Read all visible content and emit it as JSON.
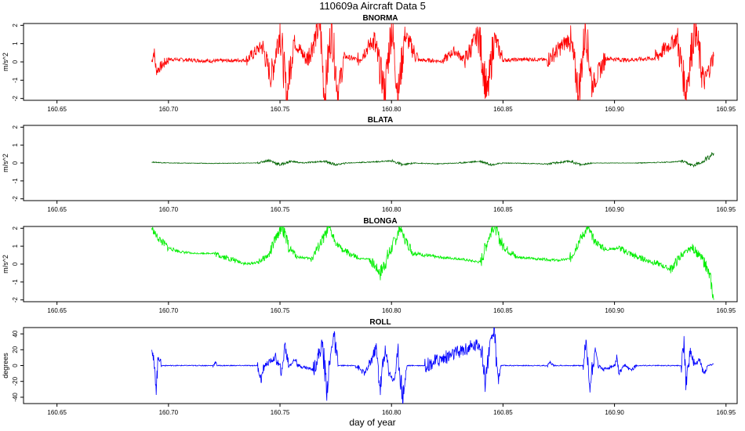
{
  "title": "110609a   Aircraft Data 5",
  "x_axis_label": "day of year",
  "colors": {
    "BNORMA": "#ff0000",
    "BLATA": "#006400",
    "BLONGA": "#00ee00",
    "ROLL": "#0000ff"
  },
  "chart_data": [
    {
      "type": "line",
      "title": "BNORMA",
      "ylabel": "m/s^2",
      "xlim": [
        160.635,
        160.955
      ],
      "ylim": [
        -2.1,
        2.1
      ],
      "yticks": [
        -2,
        -1,
        0,
        1,
        2
      ],
      "xticks": [
        160.65,
        160.7,
        160.75,
        160.8,
        160.85,
        160.9,
        160.95
      ],
      "x_range": [
        160.6925,
        160.9445
      ],
      "series": [
        {
          "values": [
            [
              160.6925,
              0.0
            ],
            [
              160.6935,
              0.6
            ],
            [
              160.6945,
              -0.5
            ],
            [
              160.7,
              0.15
            ],
            [
              160.71,
              0.1
            ],
            [
              160.72,
              0.05
            ],
            [
              160.735,
              0.1
            ],
            [
              160.742,
              0.9
            ],
            [
              160.746,
              -0.9
            ],
            [
              160.75,
              1.8
            ],
            [
              160.753,
              -2.0
            ],
            [
              160.756,
              1.2
            ],
            [
              160.762,
              0.1
            ],
            [
              160.768,
              2.0
            ],
            [
              160.77,
              -2.0
            ],
            [
              160.773,
              1.9
            ],
            [
              160.776,
              -1.6
            ],
            [
              160.779,
              0.3
            ],
            [
              160.785,
              0.1
            ],
            [
              160.792,
              1.2
            ],
            [
              160.797,
              -1.6
            ],
            [
              160.8,
              2.0
            ],
            [
              160.803,
              -1.8
            ],
            [
              160.806,
              1.5
            ],
            [
              160.812,
              0.1
            ],
            [
              160.823,
              0.05
            ],
            [
              160.828,
              0.6
            ],
            [
              160.833,
              0.1
            ],
            [
              160.839,
              1.6
            ],
            [
              160.843,
              -1.9
            ],
            [
              160.846,
              1.4
            ],
            [
              160.85,
              0.1
            ],
            [
              160.863,
              0.15
            ],
            [
              160.87,
              0.1
            ],
            [
              160.88,
              1.3
            ],
            [
              160.884,
              -1.7
            ],
            [
              160.887,
              1.9
            ],
            [
              160.89,
              -1.3
            ],
            [
              160.896,
              0.2
            ],
            [
              160.905,
              0.1
            ],
            [
              160.918,
              0.2
            ],
            [
              160.928,
              1.3
            ],
            [
              160.932,
              -1.6
            ],
            [
              160.936,
              2.0
            ],
            [
              160.94,
              -1.2
            ],
            [
              160.9445,
              0.3
            ]
          ]
        }
      ]
    },
    {
      "type": "line",
      "title": "BLATA",
      "ylabel": "m/s^2",
      "xlim": [
        160.635,
        160.955
      ],
      "ylim": [
        -2.1,
        2.1
      ],
      "yticks": [
        -2,
        -1,
        0,
        1,
        2
      ],
      "xticks": [
        160.65,
        160.7,
        160.75,
        160.8,
        160.85,
        160.9,
        160.95
      ],
      "x_range": [
        160.6925,
        160.9445
      ],
      "series": [
        {
          "values": [
            [
              160.6925,
              0.05
            ],
            [
              160.7,
              0.0
            ],
            [
              160.72,
              -0.02
            ],
            [
              160.74,
              0.0
            ],
            [
              160.745,
              0.15
            ],
            [
              160.75,
              -0.1
            ],
            [
              160.755,
              0.1
            ],
            [
              160.76,
              0.0
            ],
            [
              160.77,
              0.1
            ],
            [
              160.775,
              -0.1
            ],
            [
              160.78,
              0.0
            ],
            [
              160.79,
              0.05
            ],
            [
              160.8,
              0.12
            ],
            [
              160.805,
              -0.1
            ],
            [
              160.81,
              0.0
            ],
            [
              160.82,
              -0.05
            ],
            [
              160.83,
              0.0
            ],
            [
              160.84,
              0.1
            ],
            [
              160.845,
              -0.1
            ],
            [
              160.85,
              0.0
            ],
            [
              160.87,
              -0.05
            ],
            [
              160.88,
              0.1
            ],
            [
              160.885,
              -0.1
            ],
            [
              160.89,
              0.0
            ],
            [
              160.91,
              0.0
            ],
            [
              160.925,
              0.05
            ],
            [
              160.93,
              0.1
            ],
            [
              160.935,
              -0.15
            ],
            [
              160.94,
              0.1
            ],
            [
              160.9445,
              0.55
            ]
          ]
        }
      ]
    },
    {
      "type": "line",
      "title": "BLONGA",
      "ylabel": "m/s^2",
      "xlim": [
        160.635,
        160.955
      ],
      "ylim": [
        -2.1,
        2.1
      ],
      "yticks": [
        -2,
        -1,
        0,
        1,
        2
      ],
      "xticks": [
        160.65,
        160.7,
        160.75,
        160.8,
        160.85,
        160.9,
        160.95
      ],
      "x_range": [
        160.6925,
        160.9445
      ],
      "series": [
        {
          "values": [
            [
              160.6925,
              2.0
            ],
            [
              160.695,
              1.5
            ],
            [
              160.7,
              0.9
            ],
            [
              160.705,
              0.7
            ],
            [
              160.71,
              0.6
            ],
            [
              160.72,
              0.6
            ],
            [
              160.73,
              0.2
            ],
            [
              160.735,
              0.0
            ],
            [
              160.74,
              0.1
            ],
            [
              160.745,
              0.5
            ],
            [
              160.748,
              1.4
            ],
            [
              160.751,
              2.1
            ],
            [
              160.754,
              0.9
            ],
            [
              160.758,
              0.4
            ],
            [
              160.764,
              0.3
            ],
            [
              160.768,
              1.1
            ],
            [
              160.772,
              2.0
            ],
            [
              160.775,
              1.2
            ],
            [
              160.778,
              0.8
            ],
            [
              160.785,
              0.3
            ],
            [
              160.79,
              0.3
            ],
            [
              160.795,
              -0.5
            ],
            [
              160.8,
              0.9
            ],
            [
              160.804,
              2.0
            ],
            [
              160.806,
              1.4
            ],
            [
              160.81,
              0.6
            ],
            [
              160.82,
              0.4
            ],
            [
              160.83,
              0.3
            ],
            [
              160.835,
              0.2
            ],
            [
              160.84,
              0.1
            ],
            [
              160.843,
              1.3
            ],
            [
              160.846,
              2.1
            ],
            [
              160.85,
              1.0
            ],
            [
              160.856,
              0.4
            ],
            [
              160.864,
              0.3
            ],
            [
              160.875,
              0.2
            ],
            [
              160.88,
              0.3
            ],
            [
              160.884,
              1.3
            ],
            [
              160.888,
              2.0
            ],
            [
              160.891,
              1.3
            ],
            [
              160.896,
              0.8
            ],
            [
              160.902,
              0.9
            ],
            [
              160.91,
              0.4
            ],
            [
              160.92,
              0.0
            ],
            [
              160.925,
              -0.3
            ],
            [
              160.93,
              0.5
            ],
            [
              160.935,
              0.9
            ],
            [
              160.94,
              0.2
            ],
            [
              160.943,
              -0.8
            ],
            [
              160.9445,
              -2.0
            ]
          ]
        }
      ]
    },
    {
      "type": "line",
      "title": "ROLL",
      "ylabel": "degrees",
      "xlim": [
        160.635,
        160.955
      ],
      "ylim": [
        -48,
        48
      ],
      "yticks": [
        -40,
        -20,
        0,
        20,
        40
      ],
      "xticks": [
        160.65,
        160.7,
        160.75,
        160.8,
        160.85,
        160.9,
        160.95
      ],
      "x_range": [
        160.6925,
        160.9445
      ],
      "series": [
        {
          "values": [
            [
              160.6925,
              28
            ],
            [
              160.6935,
              0
            ],
            [
              160.6945,
              -26
            ],
            [
              160.6955,
              12
            ],
            [
              160.697,
              0
            ],
            [
              160.72,
              0
            ],
            [
              160.721,
              4
            ],
            [
              160.722,
              0
            ],
            [
              160.74,
              0
            ],
            [
              160.7415,
              -18
            ],
            [
              160.743,
              0
            ],
            [
              160.748,
              10
            ],
            [
              160.751,
              -10
            ],
            [
              160.752,
              28
            ],
            [
              160.754,
              0
            ],
            [
              160.757,
              8
            ],
            [
              160.758,
              0
            ],
            [
              160.765,
              -5
            ],
            [
              160.769,
              27
            ],
            [
              160.771,
              -30
            ],
            [
              160.773,
              18
            ],
            [
              160.774,
              40
            ],
            [
              160.776,
              0
            ],
            [
              160.784,
              0
            ],
            [
              160.788,
              -10
            ],
            [
              160.79,
              0
            ],
            [
              160.793,
              22
            ],
            [
              160.795,
              -28
            ],
            [
              160.797,
              20
            ],
            [
              160.799,
              -8
            ],
            [
              160.801,
              -20
            ],
            [
              160.803,
              15
            ],
            [
              160.805,
              -40
            ],
            [
              160.807,
              0
            ],
            [
              160.815,
              0
            ],
            [
              160.84,
              28
            ],
            [
              160.842,
              -20
            ],
            [
              160.844,
              25
            ],
            [
              160.846,
              43
            ],
            [
              160.848,
              -18
            ],
            [
              160.849,
              0
            ],
            [
              160.87,
              0
            ],
            [
              160.871,
              4
            ],
            [
              160.873,
              0
            ],
            [
              160.886,
              0
            ],
            [
              160.887,
              30
            ],
            [
              160.889,
              -25
            ],
            [
              160.891,
              20
            ],
            [
              160.893,
              0
            ],
            [
              160.895,
              -5
            ],
            [
              160.9,
              0
            ],
            [
              160.901,
              8
            ],
            [
              160.902,
              -10
            ],
            [
              160.905,
              0
            ],
            [
              160.907,
              -6
            ],
            [
              160.91,
              0
            ],
            [
              160.93,
              0
            ],
            [
              160.931,
              30
            ],
            [
              160.932,
              -20
            ],
            [
              160.934,
              18
            ],
            [
              160.936,
              0
            ],
            [
              160.938,
              8
            ],
            [
              160.94,
              -10
            ],
            [
              160.942,
              0
            ],
            [
              160.9445,
              2
            ]
          ]
        }
      ]
    }
  ]
}
